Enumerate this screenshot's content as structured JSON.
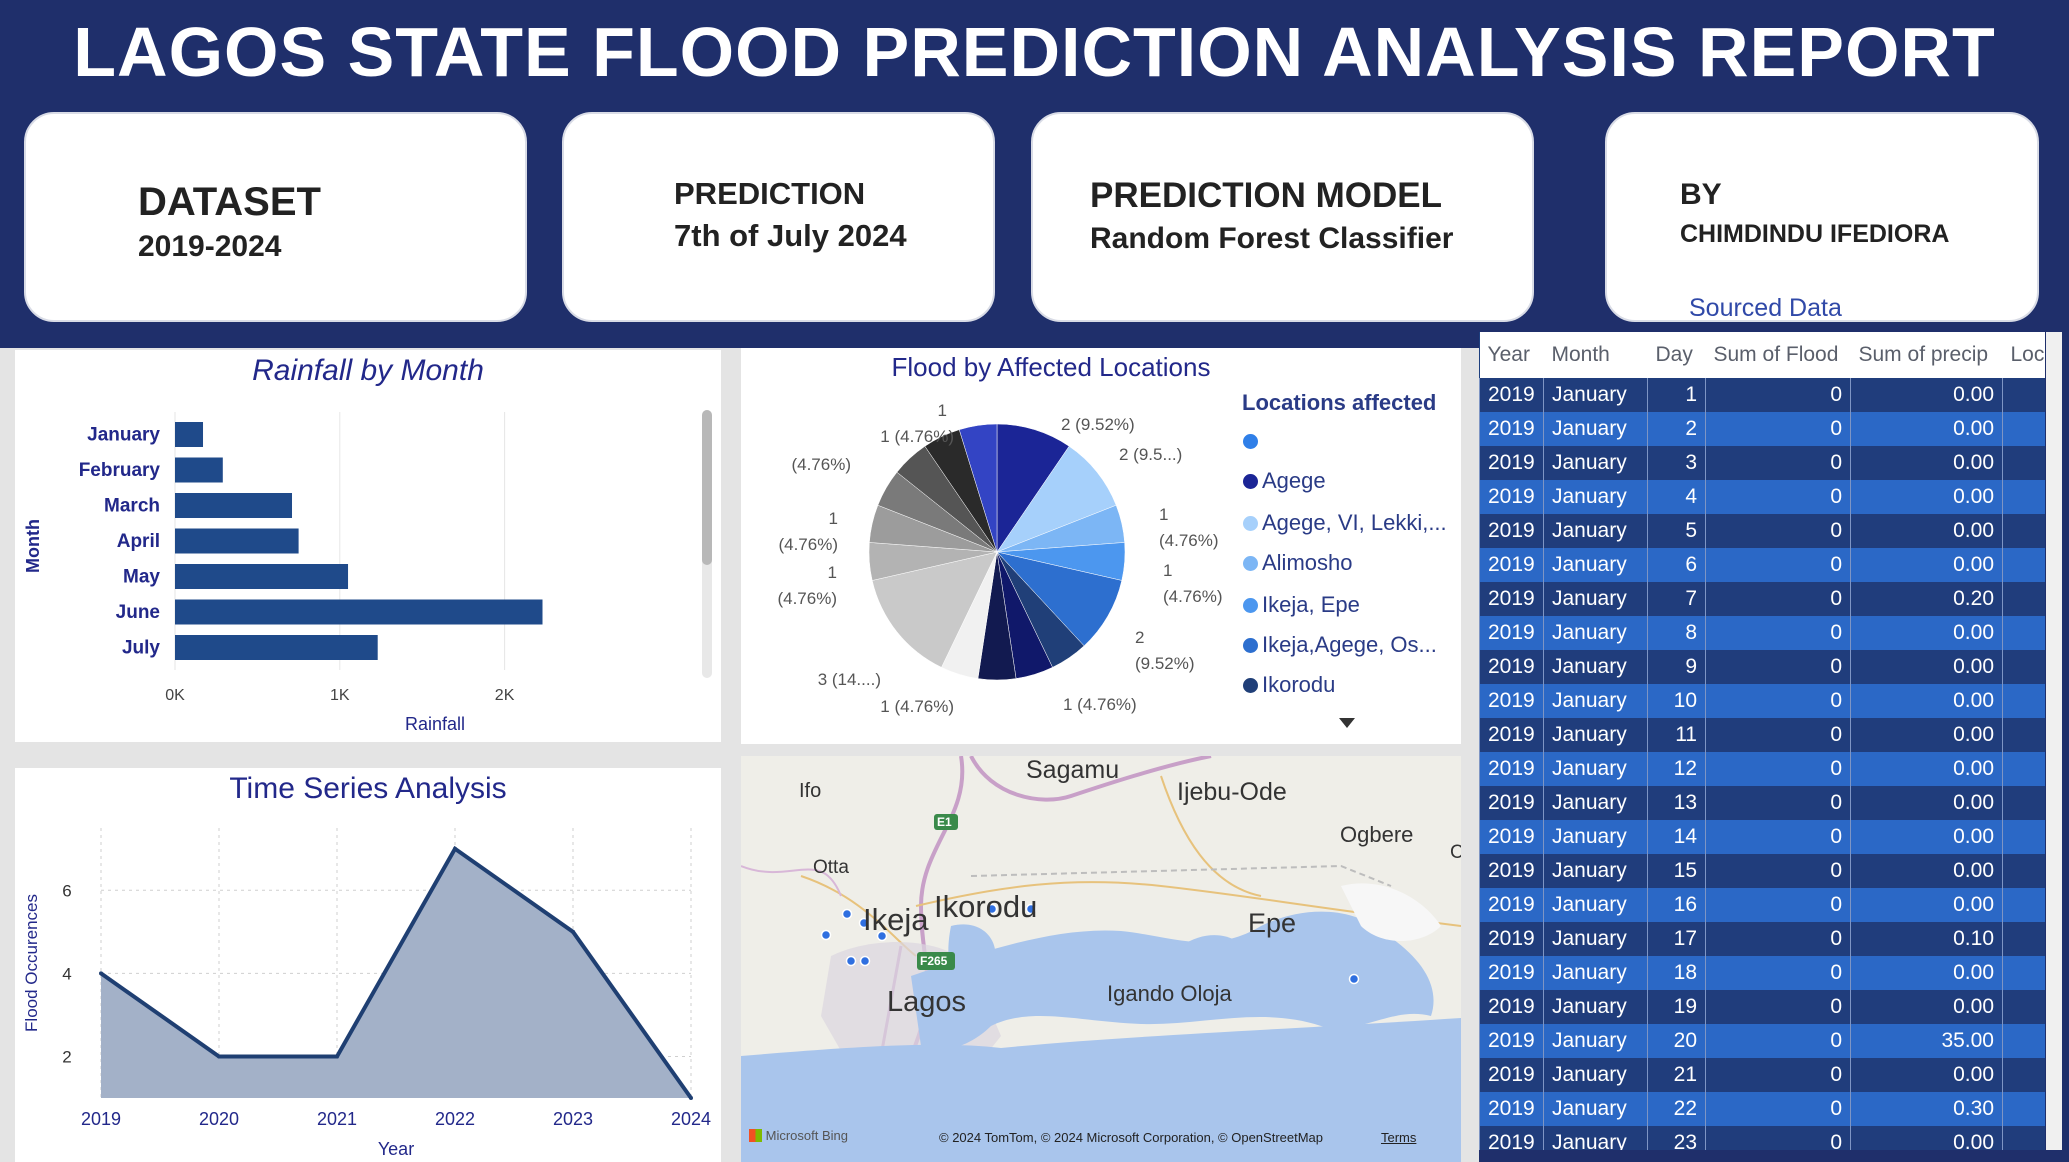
{
  "header": {
    "title": "LAGOS STATE FLOOD PREDICTION ANALYSIS REPORT"
  },
  "cards": {
    "dataset": {
      "label": "DATASET",
      "value": "2019-2024"
    },
    "prediction": {
      "label": "PREDICTION",
      "value": "7th of July 2024"
    },
    "model": {
      "label": "PREDICTION MODEL",
      "value": "Random Forest Classifier"
    },
    "author": {
      "label": "BY",
      "value": "CHIMDINDU IFEDIORA",
      "link": "Sourced Data"
    }
  },
  "rainfall_chart": {
    "title": "Rainfall by Month",
    "ylabel": "Month",
    "xlabel": "Rainfall",
    "ticks": [
      "0K",
      "1K",
      "2K"
    ],
    "color": "#1f4a8a"
  },
  "timeseries_chart": {
    "title": "Time Series Analysis",
    "ylabel": "Flood Occurences",
    "xlabel": "Year",
    "yticks": [
      "2",
      "4",
      "6"
    ],
    "color": "#1f3f72",
    "fill": "#a3b1c8"
  },
  "pie_chart": {
    "title": "Flood by Affected Locations",
    "legend_title": "Locations affected",
    "labels": [
      "2 (9.52%)",
      "2 (9.5...)",
      "1\n(4.76%)",
      "1\n(4.76%)",
      "2\n(9.52%)",
      "1 (4.76%)",
      "1 (4.76%)",
      "3 (14....)",
      "1\n(4.76%)",
      "1\n(4.76%)",
      "(4.76%)",
      "1 (4.76%)",
      "1"
    ],
    "legend": [
      {
        "name": "",
        "color": "#2f7fe8"
      },
      {
        "name": "Agege",
        "color": "#1b2596"
      },
      {
        "name": "Agege, VI, Lekki,...",
        "color": "#a6d0fb"
      },
      {
        "name": "Alimosho",
        "color": "#7cb6f5"
      },
      {
        "name": "Ikeja, Epe",
        "color": "#4c97ef"
      },
      {
        "name": "Ikeja,Agege, Os...",
        "color": "#2d6fcf"
      },
      {
        "name": "Ikorodu",
        "color": "#203f78"
      }
    ]
  },
  "chart_data": [
    {
      "type": "bar",
      "title": "Rainfall by Month",
      "xlabel": "Rainfall",
      "ylabel": "Month",
      "categories": [
        "January",
        "February",
        "March",
        "April",
        "May",
        "June",
        "July"
      ],
      "values": [
        170,
        290,
        710,
        750,
        1050,
        2230,
        1230
      ],
      "xlim": [
        0,
        2500
      ]
    },
    {
      "type": "area",
      "title": "Time Series Analysis",
      "xlabel": "Year",
      "ylabel": "Flood Occurences",
      "x": [
        "2019",
        "2020",
        "2021",
        "2022",
        "2023",
        "2024"
      ],
      "values": [
        4,
        2,
        2,
        7,
        5,
        1
      ],
      "ylim": [
        1,
        7.5
      ]
    },
    {
      "type": "pie",
      "title": "Flood by Affected Locations",
      "values": [
        2,
        2,
        1,
        1,
        2,
        1,
        1,
        1,
        1,
        3,
        1,
        1,
        1,
        1,
        1,
        1
      ],
      "colors": [
        "#1b2596",
        "#a6d0fb",
        "#7cb6f5",
        "#4c97ef",
        "#2d6fcf",
        "#203f78",
        "#10186a",
        "#121a50",
        "#f1f1f1",
        "#c9c9c9",
        "#b3b3b3",
        "#9c9c9c",
        "#7a7a7a",
        "#555555",
        "#2a2a2a",
        "#3344c4",
        "#2f55e8"
      ]
    }
  ],
  "map": {
    "places": [
      "Sagamu",
      "Ifo",
      "Ijebu-Ode",
      "Ogbere",
      "Otta",
      "Ikorodu",
      "Ikeja",
      "Epe",
      "Igando Oloja",
      "Lagos",
      "E1",
      "F265",
      "C"
    ],
    "brand": "Microsoft Bing",
    "copyright": "© 2024 TomTom, © 2024 Microsoft Corporation, © OpenStreetMap",
    "terms": "Terms"
  },
  "table": {
    "headers": [
      "Year",
      "Month",
      "Day",
      "Sum of Flood",
      "Sum of precip",
      "Loca"
    ],
    "rows": [
      [
        "2019",
        "January",
        "1",
        "0",
        "0.00"
      ],
      [
        "2019",
        "January",
        "2",
        "0",
        "0.00"
      ],
      [
        "2019",
        "January",
        "3",
        "0",
        "0.00"
      ],
      [
        "2019",
        "January",
        "4",
        "0",
        "0.00"
      ],
      [
        "2019",
        "January",
        "5",
        "0",
        "0.00"
      ],
      [
        "2019",
        "January",
        "6",
        "0",
        "0.00"
      ],
      [
        "2019",
        "January",
        "7",
        "0",
        "0.20"
      ],
      [
        "2019",
        "January",
        "8",
        "0",
        "0.00"
      ],
      [
        "2019",
        "January",
        "9",
        "0",
        "0.00"
      ],
      [
        "2019",
        "January",
        "10",
        "0",
        "0.00"
      ],
      [
        "2019",
        "January",
        "11",
        "0",
        "0.00"
      ],
      [
        "2019",
        "January",
        "12",
        "0",
        "0.00"
      ],
      [
        "2019",
        "January",
        "13",
        "0",
        "0.00"
      ],
      [
        "2019",
        "January",
        "14",
        "0",
        "0.00"
      ],
      [
        "2019",
        "January",
        "15",
        "0",
        "0.00"
      ],
      [
        "2019",
        "January",
        "16",
        "0",
        "0.00"
      ],
      [
        "2019",
        "January",
        "17",
        "0",
        "0.10"
      ],
      [
        "2019",
        "January",
        "18",
        "0",
        "0.00"
      ],
      [
        "2019",
        "January",
        "19",
        "0",
        "0.00"
      ],
      [
        "2019",
        "January",
        "20",
        "0",
        "35.00"
      ],
      [
        "2019",
        "January",
        "21",
        "0",
        "0.00"
      ],
      [
        "2019",
        "January",
        "22",
        "0",
        "0.30"
      ],
      [
        "2019",
        "January",
        "23",
        "0",
        "0.00"
      ]
    ]
  }
}
